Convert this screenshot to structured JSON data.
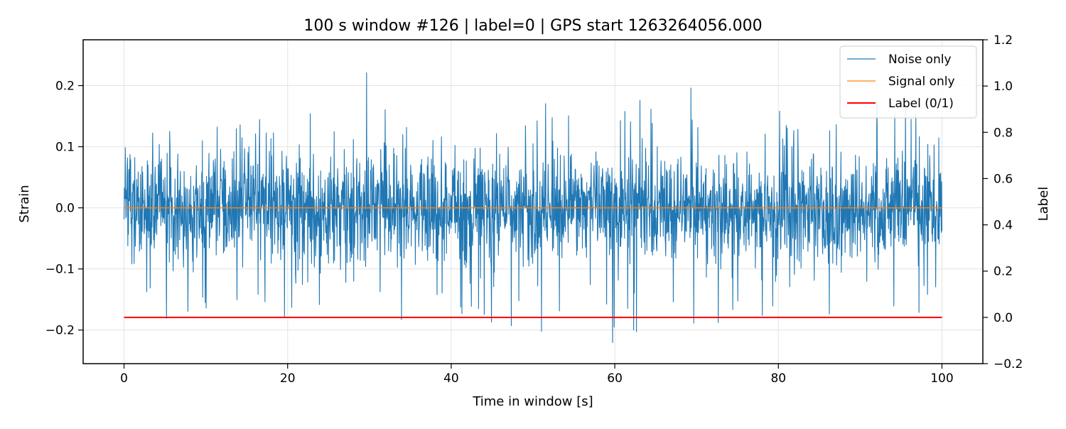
{
  "chart_data": {
    "type": "line",
    "title": "100 s window #126 | label=0 | GPS start 1263264056.000",
    "xlabel": "Time in window [s]",
    "ylabel": "Strain",
    "y2label": "Label",
    "xlim": [
      -5,
      105
    ],
    "ylim": [
      -0.255,
      0.275
    ],
    "y2lim": [
      -0.2,
      1.2
    ],
    "xticks": [
      0,
      20,
      40,
      60,
      80,
      100
    ],
    "xtick_labels": [
      "0",
      "20",
      "40",
      "60",
      "80",
      "100"
    ],
    "yticks": [
      -0.2,
      -0.1,
      0.0,
      0.1,
      0.2
    ],
    "ytick_labels": [
      "−0.2",
      "−0.1",
      "0.0",
      "0.1",
      "0.2"
    ],
    "y2ticks": [
      -0.2,
      0.0,
      0.2,
      0.4,
      0.6,
      0.8,
      1.0,
      1.2
    ],
    "y2tick_labels": [
      "−0.2",
      "0.0",
      "0.2",
      "0.4",
      "0.6",
      "0.8",
      "1.0",
      "1.2"
    ],
    "grid": true,
    "legend_position": "top-right",
    "series": [
      {
        "name": "Noise only",
        "axis": "left",
        "color": "#1f77b4",
        "x": [
          0,
          5,
          10,
          15,
          20,
          25,
          30,
          35,
          40,
          45,
          50,
          55,
          60,
          65,
          70,
          75,
          80,
          85,
          90,
          95,
          100
        ],
        "y_max": [
          0.13,
          0.16,
          0.2,
          0.16,
          0.17,
          0.25,
          0.22,
          0.18,
          0.19,
          0.2,
          0.17,
          0.2,
          0.15,
          0.2,
          0.2,
          0.2,
          0.2,
          0.17,
          0.21,
          0.2,
          0.15
        ],
        "y_min": [
          -0.14,
          -0.2,
          -0.2,
          -0.17,
          -0.18,
          -0.19,
          -0.18,
          -0.19,
          -0.18,
          -0.2,
          -0.22,
          -0.19,
          -0.23,
          -0.18,
          -0.2,
          -0.18,
          -0.2,
          -0.18,
          -0.2,
          -0.2,
          -0.15
        ]
      },
      {
        "name": "Signal only",
        "axis": "left",
        "color": "#ff7f0e",
        "x": [
          0,
          100
        ],
        "y": [
          0.0,
          0.0
        ]
      },
      {
        "name": "Label (0/1)",
        "axis": "right",
        "color": "#ff0000",
        "x": [
          0,
          100
        ],
        "y": [
          0,
          0
        ]
      }
    ],
    "annotations": []
  }
}
